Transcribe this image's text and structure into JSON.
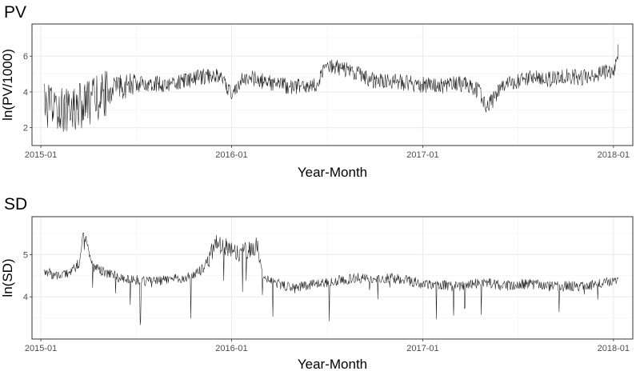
{
  "chart_data": [
    {
      "type": "line",
      "title": "PV",
      "xlabel": "Year-Month",
      "ylabel": "ln(PV/1000)",
      "x_ticks": [
        "2015-01",
        "2016-01",
        "2017-01",
        "2018-01"
      ],
      "y_ticks": [
        "2",
        "4",
        "6"
      ],
      "xlim": [
        "2014-12-15",
        "2018-02-07"
      ],
      "ylim": [
        1.0,
        7.8
      ],
      "grid": true,
      "series": [
        {
          "x": [
            "2015-01-08",
            "2015-01-24",
            "2015-02-08",
            "2015-02-24",
            "2015-03-10",
            "2015-03-24",
            "2015-04-08",
            "2015-04-24",
            "2015-05-10",
            "2015-06-01",
            "2015-07-01",
            "2015-08-01",
            "2015-09-01",
            "2015-10-01",
            "2015-11-01",
            "2015-12-01",
            "2015-12-15",
            "2016-01-01",
            "2016-01-15",
            "2016-02-01",
            "2016-03-01",
            "2016-04-01",
            "2016-05-01",
            "2016-06-01",
            "2016-06-15",
            "2016-07-01",
            "2016-08-01",
            "2016-09-01",
            "2016-10-01",
            "2016-11-01",
            "2016-12-01",
            "2017-01-01",
            "2017-02-01",
            "2017-03-01",
            "2017-04-01",
            "2017-04-20",
            "2017-05-01",
            "2017-05-15",
            "2017-06-01",
            "2017-07-01",
            "2017-08-01",
            "2017-09-01",
            "2017-10-01",
            "2017-11-01",
            "2017-11-20",
            "2017-12-01",
            "2017-12-20",
            "2018-01-01",
            "2018-01-10"
          ],
          "y": [
            3.2,
            3.0,
            3.1,
            3.0,
            3.2,
            3.3,
            3.5,
            3.7,
            4.0,
            4.3,
            4.4,
            4.5,
            4.4,
            4.6,
            4.8,
            5.0,
            4.6,
            3.9,
            4.5,
            4.8,
            4.6,
            4.4,
            4.3,
            4.2,
            4.6,
            5.5,
            5.3,
            5.0,
            4.6,
            4.6,
            4.5,
            4.4,
            4.3,
            4.5,
            4.4,
            4.0,
            3.2,
            3.5,
            4.4,
            4.6,
            4.8,
            4.7,
            4.9,
            4.8,
            4.8,
            4.9,
            5.2,
            5.0,
            6.4
          ]
        }
      ]
    },
    {
      "type": "line",
      "title": "SD",
      "xlabel": "Year-Month",
      "ylabel": "ln(SD)",
      "x_ticks": [
        "2015-01",
        "2016-01",
        "2017-01",
        "2018-01"
      ],
      "y_ticks": [
        "4",
        "5"
      ],
      "xlim": [
        "2014-12-15",
        "2018-02-07"
      ],
      "ylim": [
        3.0,
        5.9
      ],
      "grid": true,
      "series": [
        {
          "x": [
            "2015-01-08",
            "2015-02-01",
            "2015-03-01",
            "2015-03-15",
            "2015-03-22",
            "2015-03-29",
            "2015-04-10",
            "2015-05-01",
            "2015-06-01",
            "2015-07-01",
            "2015-08-01",
            "2015-09-01",
            "2015-10-01",
            "2015-10-15",
            "2015-11-01",
            "2015-11-15",
            "2015-12-01",
            "2015-12-15",
            "2016-01-01",
            "2016-01-15",
            "2016-02-01",
            "2016-02-20",
            "2016-03-01",
            "2016-04-01",
            "2016-05-01",
            "2016-06-01",
            "2016-07-01",
            "2016-08-01",
            "2016-09-01",
            "2016-10-01",
            "2016-11-01",
            "2016-12-01",
            "2017-01-01",
            "2017-02-01",
            "2017-03-01",
            "2017-04-01",
            "2017-05-01",
            "2017-06-01",
            "2017-07-01",
            "2017-08-01",
            "2017-09-01",
            "2017-10-01",
            "2017-11-01",
            "2017-12-01",
            "2018-01-10"
          ],
          "y": [
            4.6,
            4.5,
            4.6,
            4.8,
            5.45,
            5.4,
            4.7,
            4.6,
            4.45,
            4.4,
            4.35,
            4.4,
            4.45,
            4.5,
            4.6,
            4.8,
            5.3,
            5.2,
            5.1,
            5.05,
            5.1,
            5.2,
            4.5,
            4.3,
            4.2,
            4.3,
            4.35,
            4.4,
            4.45,
            4.4,
            4.45,
            4.4,
            4.3,
            4.3,
            4.25,
            4.3,
            4.35,
            4.25,
            4.3,
            4.3,
            4.25,
            4.25,
            4.25,
            4.3,
            4.4
          ]
        }
      ]
    }
  ]
}
